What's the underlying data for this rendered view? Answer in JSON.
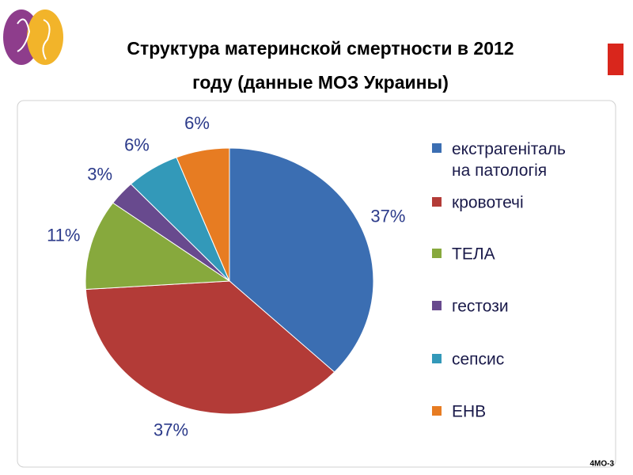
{
  "chart_data": {
    "type": "pie",
    "title": [
      "Структура материнской смертности в 2012",
      "году (данные МОЗ Украины)"
    ],
    "categories": [
      "екстрагеніталь на патологія",
      "кровотечі",
      "ТЕЛА",
      "гестози",
      "сепсис",
      "ЕНВ"
    ],
    "values": [
      37,
      37,
      11,
      3,
      6,
      6
    ],
    "value_labels": [
      "37%",
      "37%",
      "11%",
      "3%",
      "6%",
      "6%"
    ],
    "colors": [
      "#3b6eb2",
      "#b33b37",
      "#87a93d",
      "#684a8e",
      "#3399b9",
      "#e77c22"
    ],
    "legend": "right",
    "footer": "4МО-3"
  }
}
